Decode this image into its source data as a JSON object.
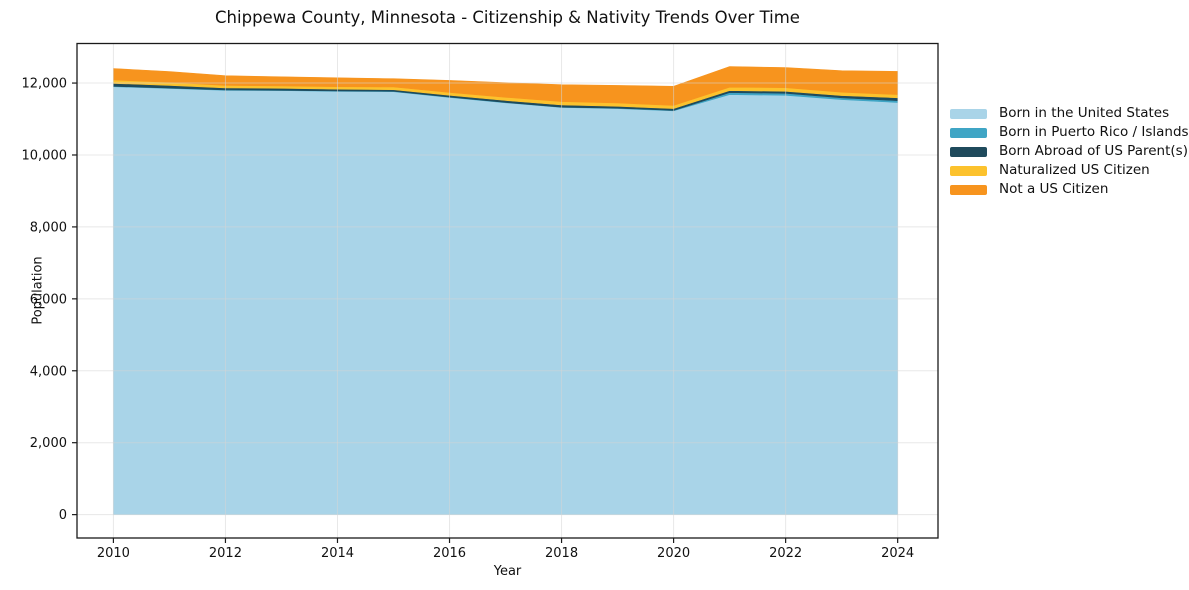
{
  "figure": {
    "title": "Chippewa County, Minnesota - Citizenship & Nativity Trends Over Time",
    "xlabel": "Year",
    "ylabel": "Population"
  },
  "chart_data": {
    "type": "area",
    "stacked": true,
    "title": "Chippewa County, Minnesota - Citizenship & Nativity Trends Over Time",
    "xlabel": "Year",
    "ylabel": "Population",
    "x": [
      2010,
      2011,
      2012,
      2013,
      2014,
      2015,
      2016,
      2017,
      2018,
      2019,
      2020,
      2021,
      2022,
      2023,
      2024
    ],
    "series": [
      {
        "name": "Born in the United States",
        "color": "#A9D4E8",
        "values": [
          11900,
          11850,
          11800,
          11790,
          11770,
          11760,
          11600,
          11450,
          11320,
          11290,
          11230,
          11680,
          11660,
          11540,
          11460
        ]
      },
      {
        "name": "Born in Puerto Rico / Islands",
        "color": "#3FA5C5",
        "values": [
          10,
          10,
          10,
          10,
          10,
          10,
          10,
          10,
          10,
          10,
          10,
          55,
          55,
          50,
          50
        ]
      },
      {
        "name": "Born Abroad of US Parent(s)",
        "color": "#1F4A5C",
        "values": [
          80,
          75,
          55,
          55,
          50,
          45,
          50,
          55,
          60,
          55,
          50,
          55,
          55,
          60,
          80
        ]
      },
      {
        "name": "Naturalized US Citizen",
        "color": "#FCC22D",
        "values": [
          95,
          85,
          70,
          65,
          70,
          75,
          80,
          90,
          95,
          90,
          85,
          95,
          100,
          95,
          90
        ]
      },
      {
        "name": "Not a US Citizen",
        "color": "#F7941E",
        "values": [
          320,
          300,
          270,
          255,
          245,
          230,
          335,
          405,
          470,
          490,
          535,
          575,
          560,
          600,
          645
        ]
      }
    ],
    "xticks": [
      2010,
      2012,
      2014,
      2016,
      2018,
      2020,
      2022,
      2024
    ],
    "xtick_labels": [
      "2010",
      "2012",
      "2014",
      "2016",
      "2018",
      "2020",
      "2022",
      "2024"
    ],
    "yticks": [
      0,
      2000,
      4000,
      6000,
      8000,
      10000,
      12000
    ],
    "ytick_labels": [
      "0",
      "2,000",
      "4,000",
      "6,000",
      "8,000",
      "10,000",
      "12,000"
    ],
    "xlim": [
      2009.35,
      2024.72
    ],
    "ylim": [
      -650,
      13100
    ],
    "grid": true,
    "legend_position": "right of plot, upper area",
    "axis_color": "#1a1a1a",
    "grid_color": "rgba(214,214,214,0.55)"
  }
}
